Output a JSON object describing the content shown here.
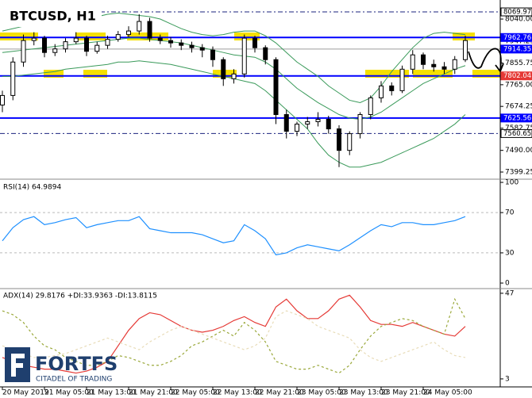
{
  "chart_data": [
    {
      "type": "candlestick",
      "title": "BTCUSD, H1",
      "categories": [
        "20 May 2019",
        null,
        null,
        null,
        "21 May 05:00",
        null,
        null,
        null,
        "21 May 13:00",
        null,
        null,
        null,
        "21 May 21:00",
        null,
        null,
        null,
        "22 May 05:00",
        null,
        null,
        null,
        "22 May 13:00",
        null,
        null,
        null,
        "22 May 21:00",
        null,
        null,
        null,
        "23 May 05:00",
        null,
        null,
        null,
        "23 May 13:00",
        null,
        null,
        null,
        "23 May 21:00",
        null,
        null,
        null,
        "24 May 05:00",
        null,
        null,
        null,
        null
      ],
      "open": [
        7680,
        7720,
        7860,
        7950,
        7960,
        7900,
        7915,
        7945,
        7960,
        7905,
        7930,
        7955,
        7975,
        7990,
        8030,
        7960,
        7950,
        7940,
        7930,
        7920,
        7910,
        7870,
        7790,
        7810,
        7960,
        7920,
        7870,
        7640,
        7570,
        7600,
        7610,
        7620,
        7580,
        7490,
        7560,
        7640,
        7710,
        7760,
        7740,
        7830,
        7890,
        7850,
        7840,
        7830,
        7870
      ],
      "high": [
        7740,
        7880,
        7975,
        7985,
        7970,
        7935,
        7960,
        7985,
        7970,
        7945,
        7970,
        7990,
        8010,
        8060,
        8045,
        7975,
        7965,
        7955,
        7945,
        7935,
        7925,
        7880,
        7830,
        7975,
        7970,
        7930,
        7880,
        7660,
        7610,
        7630,
        7650,
        7635,
        7595,
        7570,
        7650,
        7720,
        7780,
        7775,
        7845,
        7910,
        7900,
        7870,
        7860,
        7885,
        7970
      ],
      "low": [
        7650,
        7700,
        7840,
        7930,
        7880,
        7885,
        7900,
        7935,
        7885,
        7895,
        7915,
        7945,
        7965,
        7975,
        7945,
        7935,
        7920,
        7910,
        7900,
        7880,
        7840,
        7760,
        7770,
        7795,
        7900,
        7850,
        7600,
        7540,
        7550,
        7580,
        7590,
        7560,
        7420,
        7470,
        7540,
        7620,
        7690,
        7720,
        7730,
        7810,
        7830,
        7820,
        7810,
        7810,
        7860
      ],
      "close": [
        7720,
        7860,
        7950,
        7960,
        7900,
        7915,
        7945,
        7960,
        7905,
        7930,
        7955,
        7975,
        7990,
        8030,
        7960,
        7950,
        7940,
        7930,
        7920,
        7910,
        7870,
        7790,
        7810,
        7960,
        7920,
        7870,
        7640,
        7570,
        7600,
        7610,
        7620,
        7580,
        7490,
        7560,
        7640,
        7710,
        7760,
        7740,
        7830,
        7890,
        7850,
        7840,
        7830,
        7870,
        7950
      ],
      "bands": {
        "color": "#3a9a5a",
        "upper": [
          7990,
          8000,
          8010,
          8010,
          8010,
          8015,
          8020,
          8030,
          8040,
          8050,
          8060,
          8065,
          8060,
          8055,
          8050,
          8040,
          8020,
          8000,
          7985,
          7975,
          7970,
          7975,
          7985,
          7990,
          7990,
          7970,
          7940,
          7900,
          7860,
          7830,
          7800,
          7760,
          7730,
          7700,
          7690,
          7710,
          7760,
          7820,
          7870,
          7920,
          7960,
          7980,
          7985,
          7980,
          7975
        ],
        "middle": [
          7900,
          7905,
          7910,
          7915,
          7920,
          7925,
          7930,
          7935,
          7940,
          7945,
          7950,
          7955,
          7960,
          7960,
          7955,
          7950,
          7945,
          7940,
          7930,
          7920,
          7910,
          7900,
          7890,
          7885,
          7880,
          7860,
          7830,
          7790,
          7750,
          7720,
          7690,
          7665,
          7640,
          7625,
          7620,
          7630,
          7650,
          7680,
          7710,
          7740,
          7770,
          7790,
          7810,
          7830,
          7845
        ],
        "lower": [
          7800,
          7800,
          7805,
          7810,
          7815,
          7820,
          7830,
          7835,
          7840,
          7845,
          7850,
          7860,
          7860,
          7865,
          7860,
          7855,
          7850,
          7840,
          7830,
          7820,
          7810,
          7800,
          7790,
          7780,
          7770,
          7740,
          7700,
          7660,
          7620,
          7580,
          7520,
          7470,
          7440,
          7420,
          7420,
          7430,
          7440,
          7460,
          7480,
          7500,
          7520,
          7540,
          7570,
          7600,
          7640
        ]
      },
      "ylim": [
        7372.7,
        8086.6
      ],
      "yticks": [
        {
          "value": 8040,
          "label": "8040.00"
        },
        7947.25,
        7855.75,
        {
          "value": 7765,
          "label": "7765.00"
        },
        7674.25,
        7582.75,
        {
          "value": 7490,
          "label": "7490.00"
        },
        7399.25
      ],
      "levels": [
        {
          "value": 8069.97,
          "color": "#1a237e",
          "style": "dashdot",
          "label_bg": "#ffffff"
        },
        {
          "value": 7962.76,
          "color": "#0000ff",
          "style": "solid",
          "label_bg": "#0000ff"
        },
        {
          "value": 7914.35,
          "color": "#9e9e9e",
          "style": "solid",
          "label_bg": "#0000ff"
        },
        {
          "value": 7802.04,
          "color": "#0000ff",
          "style": "solid",
          "label_bg": "#e53935"
        },
        {
          "value": 7625.56,
          "color": "#0000ff",
          "style": "solid",
          "label_bg": "#0000ff"
        },
        {
          "value": 7560.65,
          "color": "#1a237e",
          "style": "dashdot",
          "label_bg": "#ffffff"
        }
      ]
    },
    {
      "type": "line",
      "title": "RSI(14) 64.9894",
      "series": [
        {
          "color": "#1e90ff",
          "values": [
            42,
            55,
            63,
            66,
            58,
            60,
            63,
            65,
            55,
            58,
            60,
            62,
            62,
            66,
            54,
            52,
            50,
            50,
            50,
            48,
            44,
            40,
            42,
            58,
            52,
            44,
            28,
            30,
            35,
            38,
            36,
            34,
            32,
            38,
            45,
            52,
            58,
            56,
            60,
            60,
            58,
            58,
            60,
            62,
            66
          ]
        }
      ],
      "ylim": [
        -4.7,
        101.6
      ],
      "yticks": [
        100,
        70,
        30,
        0
      ]
    },
    {
      "type": "line",
      "title": "ADX(14) 29.8176 +DI:33.9363 -DI:13.8115",
      "series": [
        {
          "color": "#e53935",
          "style": "solid",
          "values": [
            14,
            12,
            10,
            9,
            8,
            8,
            7,
            6,
            7,
            9,
            12,
            20,
            28,
            34,
            37,
            36,
            33,
            30,
            28,
            27,
            28,
            30,
            33,
            35,
            32,
            30,
            40,
            44,
            38,
            34,
            34,
            38,
            44,
            46,
            40,
            33,
            31,
            31,
            30,
            32,
            30,
            28,
            26,
            25,
            30
          ]
        },
        {
          "color": "#9aa83a",
          "style": "dashed",
          "values": [
            38,
            36,
            32,
            25,
            20,
            18,
            14,
            12,
            10,
            10,
            12,
            15,
            14,
            12,
            10,
            10,
            12,
            15,
            20,
            22,
            25,
            28,
            25,
            32,
            28,
            22,
            12,
            10,
            8,
            8,
            10,
            8,
            6,
            10,
            18,
            25,
            30,
            32,
            34,
            33,
            30,
            28,
            26,
            44,
            34
          ]
        },
        {
          "color": "#e8dcb8",
          "style": "dashed",
          "values": [
            20,
            18,
            16,
            14,
            14,
            15,
            16,
            18,
            20,
            22,
            24,
            22,
            20,
            18,
            22,
            25,
            28,
            30,
            28,
            26,
            24,
            22,
            20,
            18,
            20,
            24,
            35,
            38,
            36,
            34,
            30,
            28,
            26,
            24,
            18,
            14,
            12,
            14,
            16,
            18,
            20,
            22,
            18,
            15,
            14
          ]
        }
      ],
      "ylim": [
        -0.7,
        49.0
      ],
      "yticks": [
        47,
        3
      ]
    }
  ],
  "logo": {
    "name": "FORTFS",
    "tagline": "CITADEL OF TRADING"
  }
}
